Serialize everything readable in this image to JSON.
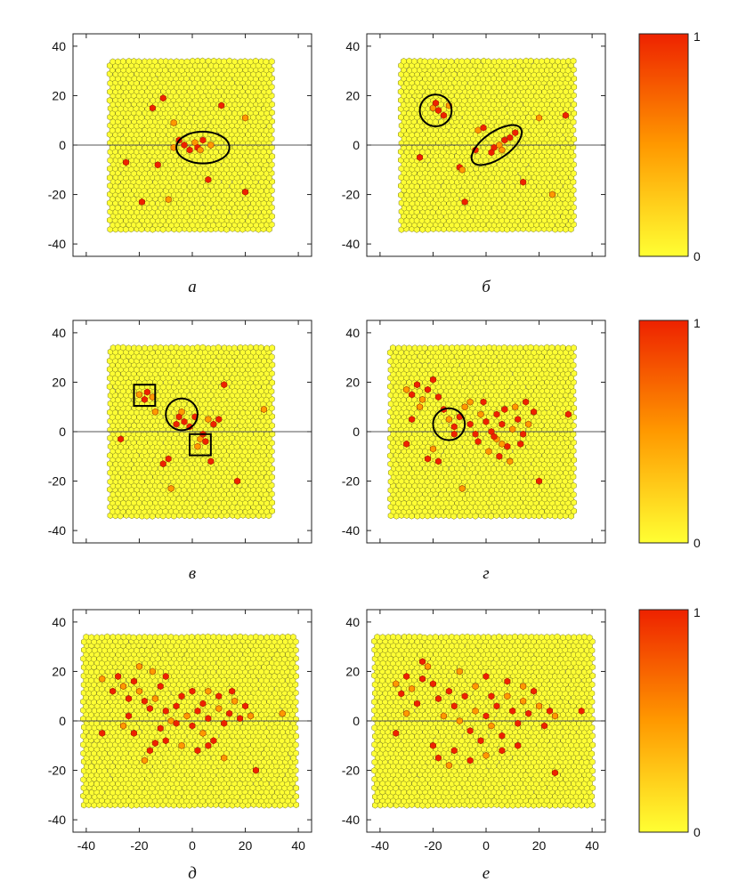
{
  "figure": {
    "x_ticks": [
      -40,
      -20,
      0,
      20,
      40
    ],
    "y_ticks": [
      40,
      20,
      0,
      -20,
      -40
    ],
    "colorbar": {
      "min_label": "0",
      "max_label": "1"
    },
    "colormap": {
      "low": "#ffff33",
      "mid": "#ff9900",
      "high": "#ee2200"
    },
    "cell_fill": "#ffff33",
    "cell_stroke": "#7a7a20"
  },
  "chart_data": [
    {
      "panel_label": "а",
      "type": "scatter",
      "xlim": [
        -45,
        45
      ],
      "ylim": [
        -45,
        45
      ],
      "specimen": {
        "x_range": [
          -31,
          30
        ],
        "y_range": [
          -34,
          34
        ]
      },
      "damaged_cells": [
        [
          -7,
          -1
        ],
        [
          -3,
          0
        ],
        [
          -1,
          -2
        ],
        [
          1,
          1
        ],
        [
          2,
          -1
        ],
        [
          4,
          2
        ],
        [
          3,
          -2
        ],
        [
          -11,
          19
        ],
        [
          -15,
          15
        ],
        [
          -7,
          9
        ],
        [
          -25,
          -7
        ],
        [
          -13,
          -8
        ],
        [
          -9,
          -22
        ],
        [
          -19,
          -23
        ],
        [
          11,
          16
        ],
        [
          20,
          11
        ],
        [
          6,
          -14
        ],
        [
          20,
          -19
        ],
        [
          7,
          0
        ],
        [
          -5,
          2
        ]
      ],
      "ellipses": [
        {
          "cx": 4,
          "cy": -1,
          "rx": 10,
          "ry": 6,
          "angle": 0
        }
      ],
      "boxes": []
    },
    {
      "panel_label": "б",
      "type": "scatter",
      "xlim": [
        -45,
        45
      ],
      "ylim": [
        -45,
        45
      ],
      "specimen": {
        "x_range": [
          -32,
          33
        ],
        "y_range": [
          -34,
          34
        ]
      },
      "damaged_cells": [
        [
          -20,
          15
        ],
        [
          -18,
          14
        ],
        [
          -16,
          12
        ],
        [
          -14,
          16
        ],
        [
          -19,
          17
        ],
        [
          3,
          -1
        ],
        [
          5,
          0
        ],
        [
          7,
          2
        ],
        [
          9,
          3
        ],
        [
          6,
          -2
        ],
        [
          2,
          -3
        ],
        [
          11,
          5
        ],
        [
          -3,
          6
        ],
        [
          -1,
          7
        ],
        [
          -10,
          -9
        ],
        [
          -9,
          -10
        ],
        [
          -8,
          -23
        ],
        [
          -25,
          -5
        ],
        [
          20,
          11
        ],
        [
          30,
          12
        ],
        [
          14,
          -15
        ],
        [
          25,
          -20
        ],
        [
          -4,
          -2
        ]
      ],
      "ellipses": [
        {
          "cx": -19,
          "cy": 14,
          "rx": 6,
          "ry": 6,
          "angle": 0
        },
        {
          "cx": 4,
          "cy": 0,
          "rx": 11,
          "ry": 5,
          "angle": -35
        }
      ],
      "boxes": []
    },
    {
      "panel_label": "в",
      "type": "scatter",
      "xlim": [
        -45,
        45
      ],
      "ylim": [
        -45,
        45
      ],
      "specimen": {
        "x_range": [
          -31,
          30
        ],
        "y_range": [
          -34,
          34
        ]
      },
      "damaged_cells": [
        [
          -20,
          15
        ],
        [
          -18,
          13
        ],
        [
          -17,
          16
        ],
        [
          -15,
          14
        ],
        [
          -5,
          6
        ],
        [
          -3,
          4
        ],
        [
          -4,
          8
        ],
        [
          -1,
          2
        ],
        [
          1,
          6
        ],
        [
          3,
          -3
        ],
        [
          5,
          -4
        ],
        [
          4,
          -1
        ],
        [
          6,
          5
        ],
        [
          8,
          3
        ],
        [
          10,
          5
        ],
        [
          -14,
          8
        ],
        [
          -9,
          -11
        ],
        [
          -11,
          -13
        ],
        [
          -8,
          -23
        ],
        [
          7,
          -12
        ],
        [
          17,
          -20
        ],
        [
          27,
          9
        ],
        [
          12,
          19
        ],
        [
          -27,
          -3
        ],
        [
          2,
          -6
        ],
        [
          -6,
          3
        ]
      ],
      "ellipses": [
        {
          "cx": -4,
          "cy": 7,
          "rx": 6,
          "ry": 6,
          "angle": 0
        }
      ],
      "boxes": [
        {
          "x": -22,
          "y": 11,
          "w": 8,
          "h": 8
        },
        {
          "x": -1,
          "y": -9,
          "w": 8,
          "h": 8
        }
      ]
    },
    {
      "panel_label": "г",
      "type": "scatter",
      "xlim": [
        -45,
        45
      ],
      "ylim": [
        -45,
        45
      ],
      "specimen": {
        "x_range": [
          -36,
          33
        ],
        "y_range": [
          -34,
          34
        ]
      },
      "damaged_cells": [
        [
          -30,
          17
        ],
        [
          -28,
          15
        ],
        [
          -26,
          19
        ],
        [
          -24,
          13
        ],
        [
          -22,
          17
        ],
        [
          -20,
          21
        ],
        [
          -25,
          10
        ],
        [
          -18,
          14
        ],
        [
          -16,
          9
        ],
        [
          -14,
          5
        ],
        [
          -12,
          2
        ],
        [
          -10,
          6
        ],
        [
          -8,
          10
        ],
        [
          -6,
          3
        ],
        [
          -4,
          -1
        ],
        [
          -2,
          7
        ],
        [
          0,
          4
        ],
        [
          2,
          0
        ],
        [
          4,
          -3
        ],
        [
          6,
          3
        ],
        [
          8,
          -6
        ],
        [
          10,
          1
        ],
        [
          12,
          5
        ],
        [
          14,
          -1
        ],
        [
          16,
          3
        ],
        [
          18,
          8
        ],
        [
          -3,
          -4
        ],
        [
          1,
          -8
        ],
        [
          5,
          -10
        ],
        [
          3,
          -2
        ],
        [
          -20,
          -7
        ],
        [
          -22,
          -11
        ],
        [
          -18,
          -12
        ],
        [
          -9,
          -23
        ],
        [
          20,
          -20
        ],
        [
          31,
          7
        ],
        [
          -6,
          12
        ],
        [
          -1,
          12
        ],
        [
          7,
          9
        ],
        [
          11,
          10
        ],
        [
          15,
          12
        ],
        [
          13,
          -5
        ],
        [
          6,
          -5
        ],
        [
          -12,
          -1
        ],
        [
          -28,
          5
        ],
        [
          9,
          -12
        ],
        [
          4,
          7
        ],
        [
          -30,
          -5
        ]
      ],
      "ellipses": [
        {
          "cx": -14,
          "cy": 3,
          "rx": 6,
          "ry": 6,
          "angle": 0
        }
      ],
      "boxes": []
    },
    {
      "panel_label": "д",
      "type": "scatter",
      "xlim": [
        -45,
        45
      ],
      "ylim": [
        -45,
        45
      ],
      "specimen": {
        "x_range": [
          -41,
          39
        ],
        "y_range": [
          -34,
          34
        ]
      },
      "damaged_cells": [
        [
          -34,
          17
        ],
        [
          -30,
          12
        ],
        [
          -28,
          18
        ],
        [
          -26,
          14
        ],
        [
          -24,
          9
        ],
        [
          -22,
          16
        ],
        [
          -20,
          12
        ],
        [
          -18,
          8
        ],
        [
          -16,
          5
        ],
        [
          -14,
          9
        ],
        [
          -12,
          14
        ],
        [
          -10,
          4
        ],
        [
          -8,
          0
        ],
        [
          -6,
          6
        ],
        [
          -4,
          10
        ],
        [
          -2,
          2
        ],
        [
          0,
          -2
        ],
        [
          2,
          4
        ],
        [
          4,
          -5
        ],
        [
          6,
          1
        ],
        [
          8,
          -8
        ],
        [
          10,
          5
        ],
        [
          12,
          -1
        ],
        [
          14,
          3
        ],
        [
          16,
          8
        ],
        [
          18,
          1
        ],
        [
          20,
          6
        ],
        [
          -15,
          20
        ],
        [
          -12,
          -3
        ],
        [
          -14,
          -9
        ],
        [
          -18,
          -16
        ],
        [
          -16,
          -12
        ],
        [
          -10,
          -8
        ],
        [
          -4,
          -10
        ],
        [
          2,
          -12
        ],
        [
          6,
          -10
        ],
        [
          12,
          -15
        ],
        [
          -22,
          -5
        ],
        [
          -24,
          2
        ],
        [
          -20,
          22
        ],
        [
          -10,
          18
        ],
        [
          0,
          12
        ],
        [
          6,
          12
        ],
        [
          10,
          10
        ],
        [
          15,
          12
        ],
        [
          22,
          2
        ],
        [
          24,
          -20
        ],
        [
          -34,
          -5
        ],
        [
          34,
          3
        ],
        [
          -6,
          -1
        ],
        [
          4,
          7
        ],
        [
          -26,
          -2
        ]
      ],
      "ellipses": [],
      "boxes": []
    },
    {
      "panel_label": "е",
      "type": "scatter",
      "xlim": [
        -45,
        45
      ],
      "ylim": [
        -45,
        45
      ],
      "specimen": {
        "x_range": [
          -42,
          40
        ],
        "y_range": [
          -34,
          34
        ]
      },
      "damaged_cells": [
        [
          -34,
          15
        ],
        [
          -32,
          11
        ],
        [
          -30,
          18
        ],
        [
          -28,
          13
        ],
        [
          -26,
          7
        ],
        [
          -24,
          17
        ],
        [
          -22,
          22
        ],
        [
          -20,
          15
        ],
        [
          -18,
          9
        ],
        [
          -16,
          2
        ],
        [
          -14,
          12
        ],
        [
          -12,
          6
        ],
        [
          -10,
          0
        ],
        [
          -8,
          10
        ],
        [
          -6,
          -4
        ],
        [
          -4,
          4
        ],
        [
          -2,
          -8
        ],
        [
          0,
          2
        ],
        [
          2,
          -2
        ],
        [
          4,
          6
        ],
        [
          6,
          -6
        ],
        [
          8,
          10
        ],
        [
          10,
          4
        ],
        [
          12,
          -1
        ],
        [
          14,
          8
        ],
        [
          16,
          3
        ],
        [
          18,
          12
        ],
        [
          20,
          6
        ],
        [
          22,
          -2
        ],
        [
          24,
          4
        ],
        [
          26,
          2
        ],
        [
          -20,
          -10
        ],
        [
          -18,
          -15
        ],
        [
          -14,
          -18
        ],
        [
          -12,
          -12
        ],
        [
          -6,
          -16
        ],
        [
          0,
          -14
        ],
        [
          6,
          -12
        ],
        [
          12,
          -10
        ],
        [
          -30,
          3
        ],
        [
          -34,
          -5
        ],
        [
          -24,
          24
        ],
        [
          -10,
          20
        ],
        [
          0,
          18
        ],
        [
          8,
          16
        ],
        [
          14,
          14
        ],
        [
          26,
          -21
        ],
        [
          36,
          4
        ],
        [
          -4,
          14
        ],
        [
          2,
          10
        ]
      ],
      "ellipses": [],
      "boxes": []
    }
  ]
}
